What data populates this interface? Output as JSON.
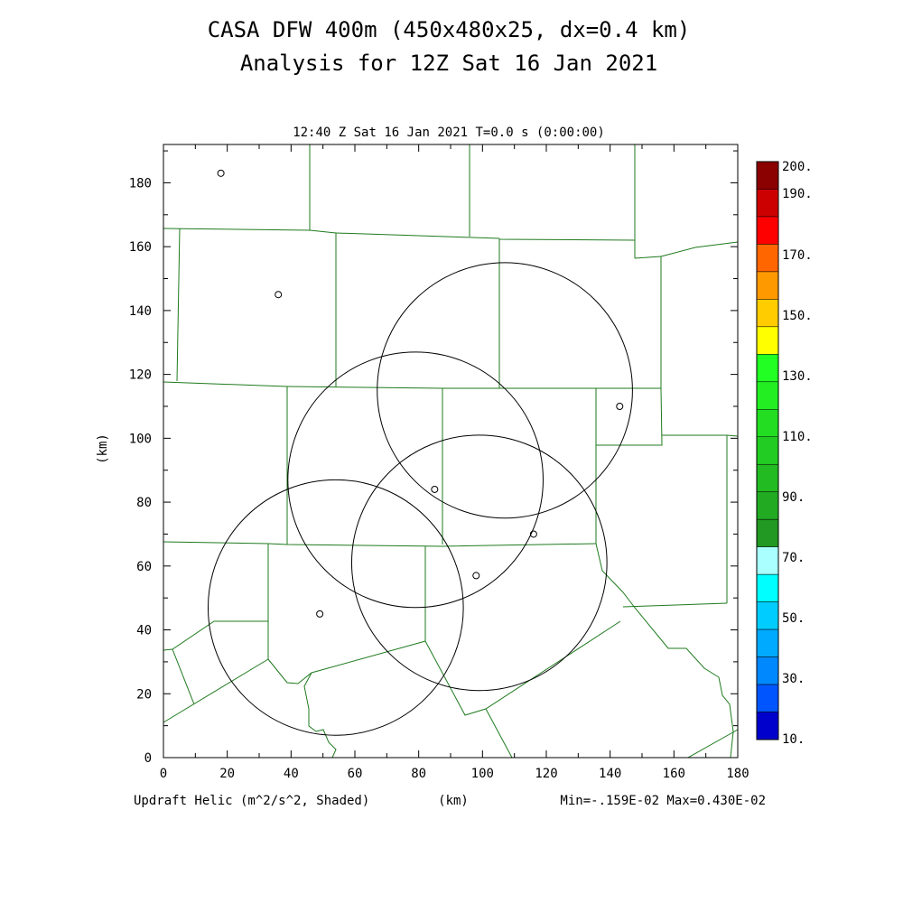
{
  "titles": {
    "line1": "CASA DFW 400m (450x480x25, dx=0.4 km)",
    "line2": "Analysis for 12Z Sat 16 Jan 2021"
  },
  "plot_header": "12:40 Z Sat 16 Jan 2021   T=0.0 s (0:00:00)",
  "footer": {
    "left": "Updraft Helic (m^2/s^2, Shaded)",
    "center": "(km)",
    "right": "Min=-.159E-02 Max=0.430E-02"
  },
  "chart_data": {
    "type": "map",
    "xlabel": "(km)",
    "ylabel": "(km)",
    "xlim": [
      0,
      180
    ],
    "ylim": [
      0,
      192
    ],
    "xticks": [
      "0",
      "20",
      "40",
      "60",
      "80",
      "100",
      "120",
      "140",
      "160",
      "180"
    ],
    "yticks": [
      "0",
      "20",
      "40",
      "60",
      "80",
      "100",
      "120",
      "140",
      "160",
      "180"
    ],
    "radar_circles": [
      {
        "cx": 54,
        "cy": 47,
        "r": 40
      },
      {
        "cx": 79,
        "cy": 87,
        "r": 40
      },
      {
        "cx": 99,
        "cy": 61,
        "r": 40
      },
      {
        "cx": 107,
        "cy": 115,
        "r": 40
      }
    ],
    "site_markers": [
      {
        "x": 18,
        "y": 183
      },
      {
        "x": 36,
        "y": 145
      },
      {
        "x": 143,
        "y": 110
      },
      {
        "x": 85,
        "y": 84
      },
      {
        "x": 116,
        "y": 70
      },
      {
        "x": 98,
        "y": 57
      },
      {
        "x": 49,
        "y": 45
      }
    ],
    "boundary_color": "#1e7a1e",
    "colorbar": {
      "labels": [
        "200.",
        "190.",
        "170.",
        "150.",
        "130.",
        "110.",
        "90.",
        "70.",
        "50.",
        "30.",
        "10."
      ],
      "colors": [
        "#8b0000",
        "#cc0000",
        "#ff0000",
        "#ff6600",
        "#ff9900",
        "#ffcc00",
        "#ffff00",
        "#22ff22",
        "#22ee22",
        "#22dd22",
        "#22cc22",
        "#22bb22",
        "#22aa22",
        "#229922",
        "#aaffff",
        "#00ffff",
        "#00ccff",
        "#00aaff",
        "#0088ff",
        "#0055ff",
        "#0000cc"
      ]
    }
  }
}
